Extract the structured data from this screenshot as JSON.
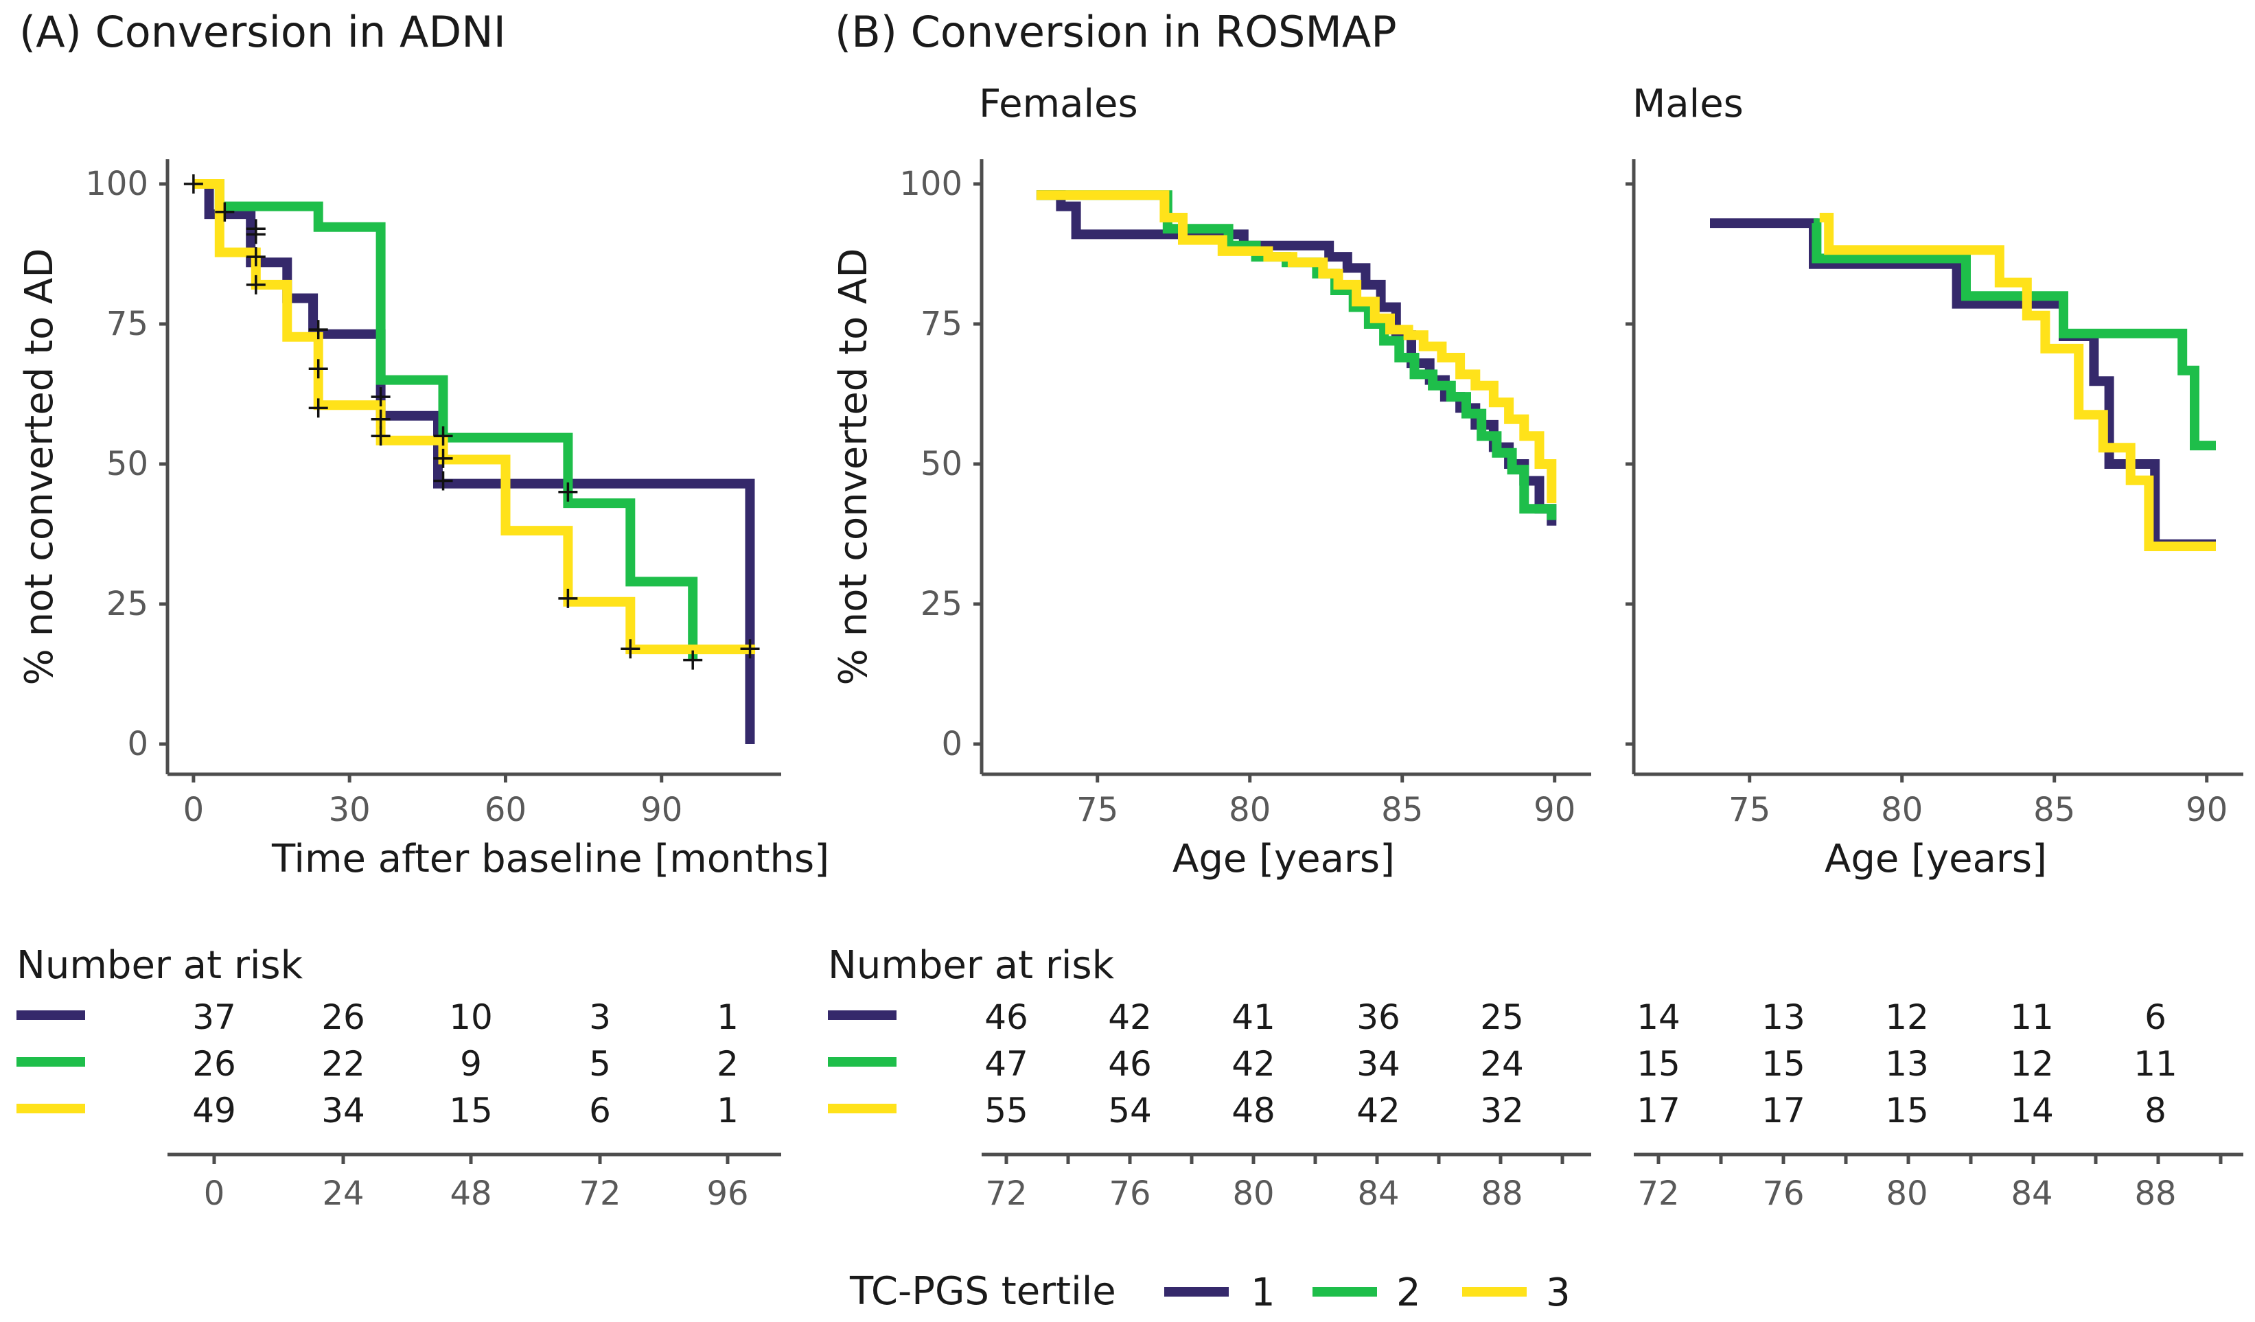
{
  "colors": {
    "t1": "#35296B",
    "t2": "#1EBE4A",
    "t3": "#FFE21A",
    "axis": "#4d4d4d",
    "text": "#1a1a1a",
    "tick": "#595959",
    "censor": "#111111"
  },
  "panels": {
    "adni": {
      "title": "(A) Conversion in ADNI",
      "xlabel": "Time after baseline [months]",
      "ylabel": "% not converted to AD",
      "xticks": [
        0,
        30,
        60,
        90
      ],
      "yticks": [
        0,
        25,
        50,
        75,
        100
      ]
    },
    "rosmap": {
      "title": "(B) Conversion in ROSMAP",
      "females": {
        "strip": "Females",
        "xlabel": "Age [years]",
        "ylabel": "% not converted to AD"
      },
      "males": {
        "strip": "Males",
        "xlabel": "Age [years]"
      },
      "xticks": [
        75,
        80,
        85,
        90
      ],
      "yticks": [
        0,
        25,
        50,
        75,
        100
      ]
    }
  },
  "chart_data": [
    {
      "id": "adni",
      "type": "line",
      "subtype": "kaplan-meier step",
      "title": "(A) Conversion in ADNI",
      "xlabel": "Time after baseline [months]",
      "ylabel": "% not converted to AD",
      "xlim": [
        -5,
        113
      ],
      "ylim": [
        0,
        100
      ],
      "series": [
        {
          "name": "1",
          "x": [
            0,
            3,
            11,
            18,
            23,
            36,
            47,
            107,
            107
          ],
          "y": [
            100,
            94.6,
            86,
            79.6,
            73.2,
            58.6,
            46.5,
            46.5,
            0
          ],
          "censor": [
            [
              12,
              92
            ],
            [
              36,
              62
            ],
            [
              48,
              47
            ]
          ]
        },
        {
          "name": "2",
          "x": [
            0,
            5,
            24,
            36,
            48,
            72,
            84,
            96
          ],
          "y": [
            100,
            96,
            92.3,
            65,
            54.7,
            43,
            29,
            15
          ],
          "censor": [
            [
              12,
              91
            ],
            [
              24,
              74
            ],
            [
              36,
              58
            ],
            [
              48,
              55
            ],
            [
              72,
              45
            ],
            [
              96,
              15
            ]
          ]
        },
        {
          "name": "3",
          "x": [
            0,
            5,
            12,
            18,
            24,
            36,
            48,
            60,
            72,
            84,
            108
          ],
          "y": [
            100,
            87.8,
            82,
            72.7,
            60.5,
            54.2,
            50.8,
            38.1,
            25.4,
            16.9,
            16.9
          ],
          "censor": [
            [
              0,
              100
            ],
            [
              6,
              95
            ],
            [
              12,
              87
            ],
            [
              12,
              82
            ],
            [
              24,
              67
            ],
            [
              24,
              60
            ],
            [
              36,
              55
            ],
            [
              48,
              51
            ],
            [
              72,
              26
            ],
            [
              84,
              17
            ],
            [
              107,
              17
            ]
          ]
        }
      ]
    },
    {
      "id": "rosmap-females",
      "type": "line",
      "subtype": "kaplan-meier step",
      "title": "Females",
      "xlabel": "Age [years]",
      "ylabel": "% not converted to AD",
      "xlim": [
        71.2,
        91.2
      ],
      "ylim": [
        0,
        100
      ],
      "series": [
        {
          "name": "1",
          "x": [
            73,
            73.8,
            74.3,
            79.8,
            82.6,
            83.2,
            83.8,
            84.3,
            84.8,
            85.3,
            85.9,
            86.4,
            86.9,
            87.4,
            88,
            88.5,
            89,
            89.5,
            89.9
          ],
          "y": [
            98,
            96,
            91,
            89,
            87,
            85,
            82,
            78,
            73,
            68,
            65,
            62,
            60,
            57,
            53,
            50,
            47,
            42,
            39
          ]
        },
        {
          "name": "2",
          "x": [
            73,
            77.3,
            79.3,
            80.2,
            81.2,
            82.2,
            82.8,
            83.4,
            83.9,
            84.4,
            84.9,
            85.4,
            86,
            86.6,
            87.1,
            87.6,
            88.1,
            88.6,
            89,
            89.9
          ],
          "y": [
            98,
            92,
            89,
            87,
            86,
            84,
            81,
            78,
            75,
            72,
            69,
            66,
            64,
            62,
            59,
            55,
            52,
            49,
            42,
            40
          ]
        },
        {
          "name": "3",
          "x": [
            73,
            77.2,
            77.8,
            79.1,
            80.6,
            81.4,
            82.4,
            82.9,
            83.5,
            84.1,
            84.6,
            85.2,
            85.7,
            86.3,
            86.9,
            87.4,
            88,
            88.5,
            89,
            89.5,
            89.9
          ],
          "y": [
            98,
            94,
            90,
            88,
            87,
            86,
            84,
            82,
            79,
            76,
            74,
            73,
            71,
            69,
            66,
            64,
            61,
            58,
            55,
            50,
            43
          ]
        }
      ]
    },
    {
      "id": "rosmap-males",
      "type": "line",
      "subtype": "kaplan-meier step",
      "title": "Males",
      "xlabel": "Age [years]",
      "ylabel": "",
      "xlim": [
        71.2,
        91.2
      ],
      "ylim": [
        0,
        100
      ],
      "series": [
        {
          "name": "1",
          "x": [
            73.7,
            77.1,
            81.8,
            84.8,
            85.3,
            86.3,
            86.8,
            87.8,
            88.3,
            90.3
          ],
          "y": [
            93,
            85.7,
            78.6,
            78.6,
            72.8,
            64.8,
            50,
            50,
            35.7,
            35.7
          ]
        },
        {
          "name": "2",
          "x": [
            77.1,
            77.2,
            82.1,
            84.8,
            85.3,
            89.2,
            89.6,
            90.3
          ],
          "y": [
            93,
            86.7,
            80,
            80,
            73.3,
            66.7,
            53.3,
            53.3
          ]
        },
        {
          "name": "3",
          "x": [
            77.3,
            77.6,
            83.2,
            84.1,
            84.7,
            85.8,
            86.6,
            87.5,
            88.1,
            90.3
          ],
          "y": [
            94,
            88.2,
            82.4,
            76.5,
            70.6,
            58.8,
            52.9,
            47.1,
            35.3,
            35.3
          ]
        }
      ]
    }
  ],
  "risk_tables": {
    "title": "Number at risk",
    "adni": {
      "times": [
        "0",
        "24",
        "48",
        "72",
        "96"
      ],
      "rows": [
        [
          "37",
          "26",
          "10",
          "3",
          "1"
        ],
        [
          "26",
          "22",
          "9",
          "5",
          "2"
        ],
        [
          "49",
          "34",
          "15",
          "6",
          "1"
        ]
      ]
    },
    "females": {
      "times": [
        "72",
        "76",
        "80",
        "84",
        "88"
      ],
      "rows": [
        [
          "46",
          "42",
          "41",
          "36",
          "25"
        ],
        [
          "47",
          "46",
          "42",
          "34",
          "24"
        ],
        [
          "55",
          "54",
          "48",
          "42",
          "32"
        ]
      ]
    },
    "males": {
      "times": [
        "72",
        "76",
        "80",
        "84",
        "88"
      ],
      "rows": [
        [
          "14",
          "13",
          "12",
          "11",
          "6"
        ],
        [
          "15",
          "15",
          "13",
          "12",
          "11"
        ],
        [
          "17",
          "17",
          "15",
          "14",
          "8"
        ]
      ]
    }
  },
  "legend": {
    "title": "TC-PGS tertile",
    "items": [
      "1",
      "2",
      "3"
    ]
  }
}
